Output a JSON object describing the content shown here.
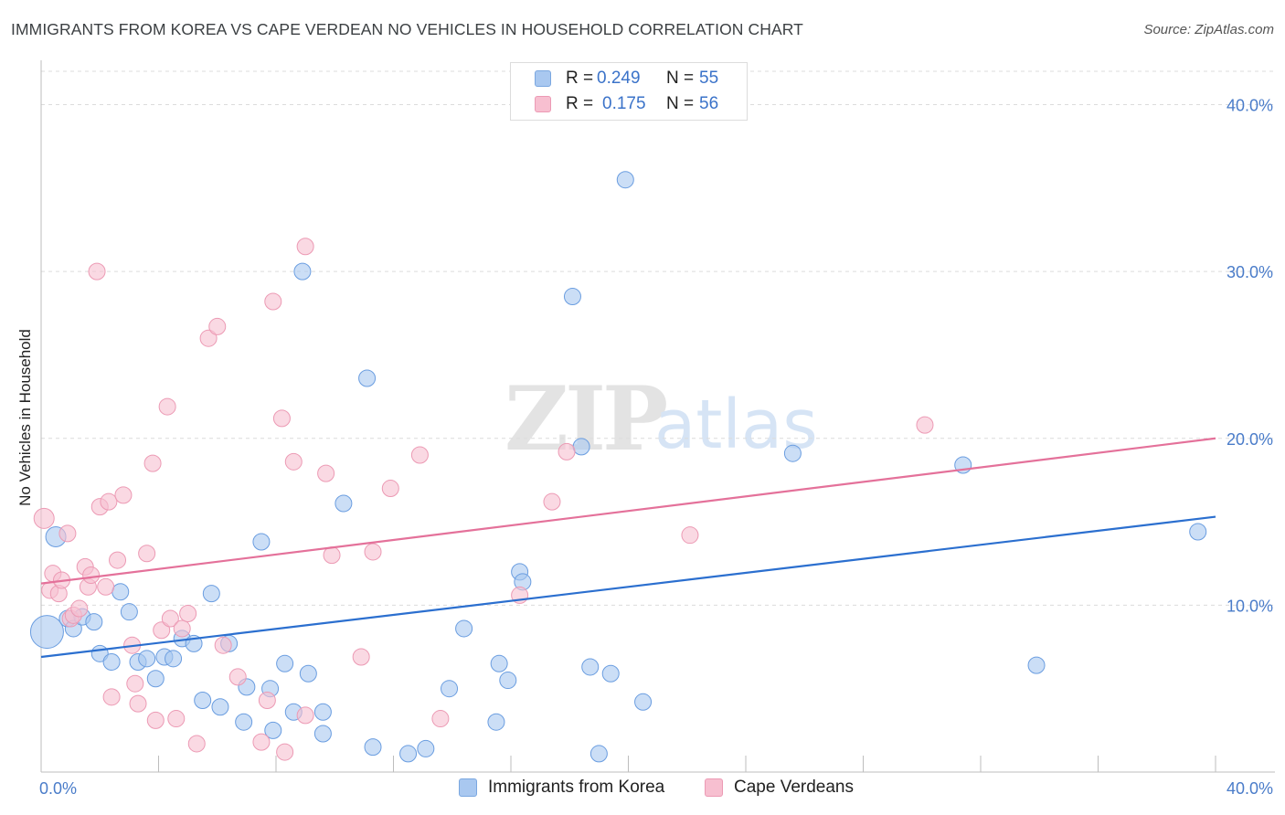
{
  "title": "IMMIGRANTS FROM KOREA VS CAPE VERDEAN NO VEHICLES IN HOUSEHOLD CORRELATION CHART",
  "source": "Source: ZipAtlas.com",
  "watermark": {
    "zip": "ZIP",
    "atlas": "atlas"
  },
  "legend_top": [
    {
      "r_label": "R =",
      "r_value": "0.249",
      "n_label": "N =",
      "n_value": "55",
      "color": "#a9c8f0",
      "border": "#7aa7e0"
    },
    {
      "r_label": "R =",
      "r_value": "0.175",
      "n_label": "N =",
      "n_value": "56",
      "color": "#f7bfd0",
      "border": "#ec9ab4"
    }
  ],
  "legend_bottom": [
    {
      "label": "Immigrants from Korea",
      "color": "#a9c8f0",
      "border": "#7aa7e0"
    },
    {
      "label": "Cape Verdeans",
      "color": "#f7bfd0",
      "border": "#ec9ab4"
    }
  ],
  "chart_data": {
    "type": "scatter",
    "title": "IMMIGRANTS FROM KOREA VS CAPE VERDEAN NO VEHICLES IN HOUSEHOLD CORRELATION CHART",
    "xlabel": "",
    "ylabel": "No Vehicles in Household",
    "xlim": [
      0,
      40
    ],
    "ylim": [
      0,
      42
    ],
    "x_tick_labels": [
      "0.0%",
      "40.0%"
    ],
    "y_ticks": [
      10,
      20,
      30,
      40
    ],
    "y_tick_labels": [
      "10.0%",
      "20.0%",
      "30.0%",
      "40.0%"
    ],
    "grid": true,
    "series": [
      {
        "name": "Immigrants from Korea",
        "color": "#a9c8f0",
        "stroke": "#6a9de0",
        "line_color": "#2b6fcf",
        "trend": {
          "x": [
            0,
            40
          ],
          "y": [
            6.9,
            15.3
          ]
        },
        "points": [
          [
            0.5,
            14.1,
            11
          ],
          [
            0.2,
            8.4,
            18
          ],
          [
            0.9,
            9.2,
            9
          ],
          [
            1.1,
            8.6,
            9
          ],
          [
            1.4,
            9.3,
            9
          ],
          [
            1.8,
            9.0,
            9
          ],
          [
            2.0,
            7.1,
            9
          ],
          [
            2.4,
            6.6,
            9
          ],
          [
            2.7,
            10.8,
            9
          ],
          [
            3.0,
            9.6,
            9
          ],
          [
            3.3,
            6.6,
            9
          ],
          [
            3.6,
            6.8,
            9
          ],
          [
            3.9,
            5.6,
            9
          ],
          [
            4.2,
            6.9,
            9
          ],
          [
            4.5,
            6.8,
            9
          ],
          [
            4.8,
            8.0,
            9
          ],
          [
            5.2,
            7.7,
            9
          ],
          [
            5.5,
            4.3,
            9
          ],
          [
            5.8,
            10.7,
            9
          ],
          [
            6.1,
            3.9,
            9
          ],
          [
            6.4,
            7.7,
            9
          ],
          [
            6.9,
            3.0,
            9
          ],
          [
            7.0,
            5.1,
            9
          ],
          [
            7.5,
            13.8,
            9
          ],
          [
            7.8,
            5.0,
            9
          ],
          [
            7.9,
            2.5,
            9
          ],
          [
            8.3,
            6.5,
            9
          ],
          [
            8.6,
            3.6,
            9
          ],
          [
            8.9,
            30.0,
            9
          ],
          [
            9.1,
            5.9,
            9
          ],
          [
            9.6,
            2.3,
            9
          ],
          [
            9.6,
            3.6,
            9
          ],
          [
            10.3,
            16.1,
            9
          ],
          [
            11.1,
            23.6,
            9
          ],
          [
            11.3,
            1.5,
            9
          ],
          [
            12.5,
            1.1,
            9
          ],
          [
            13.1,
            1.4,
            9
          ],
          [
            13.9,
            5.0,
            9
          ],
          [
            14.4,
            8.6,
            9
          ],
          [
            15.5,
            3.0,
            9
          ],
          [
            15.6,
            6.5,
            9
          ],
          [
            15.9,
            5.5,
            9
          ],
          [
            16.3,
            12.0,
            9
          ],
          [
            16.4,
            11.4,
            9
          ],
          [
            18.1,
            28.5,
            9
          ],
          [
            18.4,
            19.5,
            9
          ],
          [
            18.7,
            6.3,
            9
          ],
          [
            19.0,
            1.1,
            9
          ],
          [
            19.4,
            5.9,
            9
          ],
          [
            19.9,
            35.5,
            9
          ],
          [
            20.5,
            4.2,
            9
          ],
          [
            25.6,
            19.1,
            9
          ],
          [
            31.4,
            18.4,
            9
          ],
          [
            33.9,
            6.4,
            9
          ],
          [
            39.4,
            14.4,
            9
          ]
        ]
      },
      {
        "name": "Cape Verdeans",
        "color": "#f7bfd0",
        "stroke": "#ec9ab4",
        "line_color": "#e4719a",
        "trend": {
          "x": [
            0,
            40
          ],
          "y": [
            11.3,
            20.0
          ]
        },
        "points": [
          [
            0.1,
            15.2,
            11
          ],
          [
            0.3,
            10.9,
            9
          ],
          [
            0.4,
            11.9,
            9
          ],
          [
            0.6,
            10.7,
            9
          ],
          [
            0.7,
            11.5,
            9
          ],
          [
            0.9,
            14.3,
            9
          ],
          [
            1.0,
            9.2,
            9
          ],
          [
            1.1,
            9.4,
            9
          ],
          [
            1.3,
            9.8,
            9
          ],
          [
            1.5,
            12.3,
            9
          ],
          [
            1.6,
            11.1,
            9
          ],
          [
            1.7,
            11.8,
            9
          ],
          [
            1.9,
            30.0,
            9
          ],
          [
            2.0,
            15.9,
            9
          ],
          [
            2.2,
            11.1,
            9
          ],
          [
            2.3,
            16.2,
            9
          ],
          [
            2.4,
            4.5,
            9
          ],
          [
            2.6,
            12.7,
            9
          ],
          [
            2.8,
            16.6,
            9
          ],
          [
            3.1,
            7.6,
            9
          ],
          [
            3.2,
            5.3,
            9
          ],
          [
            3.3,
            4.1,
            9
          ],
          [
            3.6,
            13.1,
            9
          ],
          [
            3.8,
            18.5,
            9
          ],
          [
            3.9,
            3.1,
            9
          ],
          [
            4.1,
            8.5,
            9
          ],
          [
            4.3,
            21.9,
            9
          ],
          [
            4.4,
            9.2,
            9
          ],
          [
            4.6,
            3.2,
            9
          ],
          [
            4.8,
            8.6,
            9
          ],
          [
            5.0,
            9.5,
            9
          ],
          [
            5.3,
            1.7,
            9
          ],
          [
            5.7,
            26.0,
            9
          ],
          [
            6.0,
            26.7,
            9
          ],
          [
            6.2,
            7.6,
            9
          ],
          [
            6.7,
            5.7,
            9
          ],
          [
            7.5,
            1.8,
            9
          ],
          [
            7.7,
            4.3,
            9
          ],
          [
            7.9,
            28.2,
            9
          ],
          [
            8.2,
            21.2,
            9
          ],
          [
            8.3,
            1.2,
            9
          ],
          [
            8.6,
            18.6,
            9
          ],
          [
            9.0,
            3.4,
            9
          ],
          [
            9.0,
            31.5,
            9
          ],
          [
            9.7,
            17.9,
            9
          ],
          [
            9.9,
            13.0,
            9
          ],
          [
            10.9,
            6.9,
            9
          ],
          [
            11.3,
            13.2,
            9
          ],
          [
            11.9,
            17.0,
            9
          ],
          [
            12.9,
            19.0,
            9
          ],
          [
            13.6,
            3.2,
            9
          ],
          [
            16.3,
            10.6,
            9
          ],
          [
            17.4,
            16.2,
            9
          ],
          [
            17.9,
            19.2,
            9
          ],
          [
            22.1,
            14.2,
            9
          ],
          [
            30.1,
            20.8,
            9
          ]
        ]
      }
    ]
  }
}
